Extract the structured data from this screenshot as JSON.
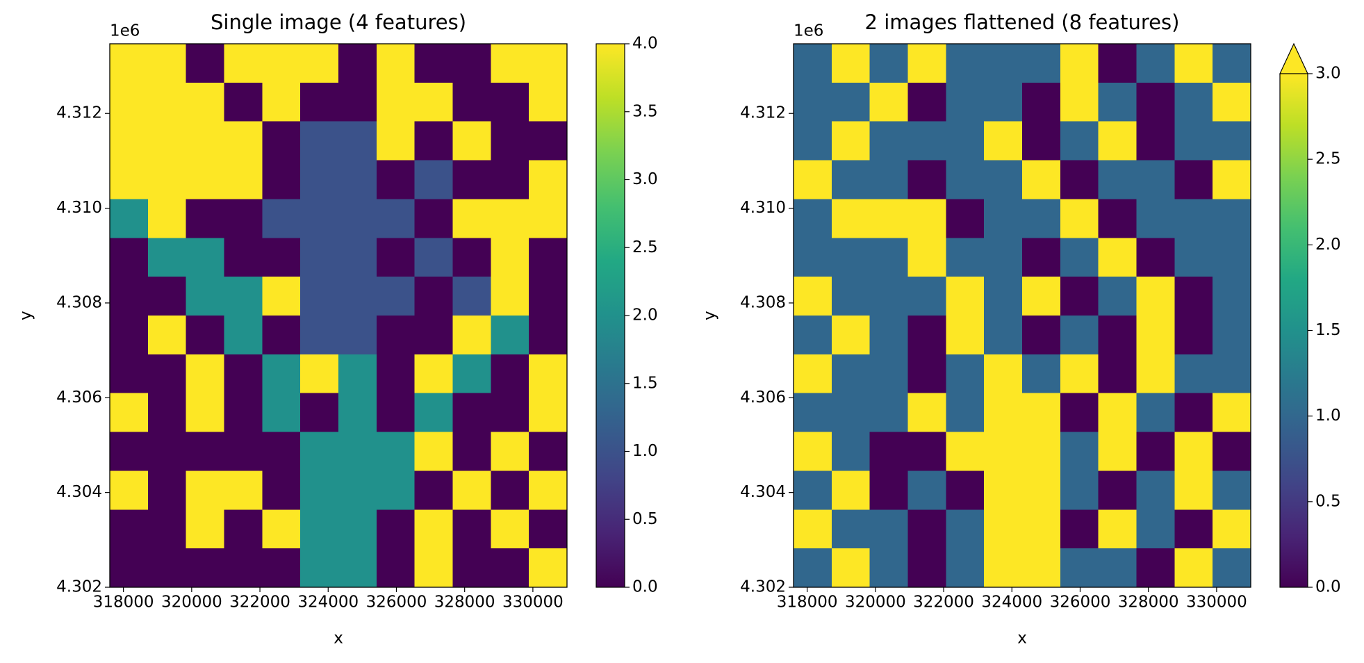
{
  "chart_data": [
    {
      "type": "heatmap",
      "title": "Single image (4 features)",
      "xlabel": "x",
      "ylabel": "y",
      "y_offset_label": "1e6",
      "colormap": "viridis",
      "xlim": [
        317600,
        331000
      ],
      "ylim": [
        4302000,
        4313470
      ],
      "xticks": [
        318000,
        320000,
        322000,
        324000,
        326000,
        328000,
        330000
      ],
      "yticks": [
        {
          "value": 4302000,
          "label": "4.302"
        },
        {
          "value": 4304000,
          "label": "4.304"
        },
        {
          "value": 4306000,
          "label": "4.306"
        },
        {
          "value": 4308000,
          "label": "4.308"
        },
        {
          "value": 4310000,
          "label": "4.310"
        },
        {
          "value": 4312000,
          "label": "4.312"
        }
      ],
      "clim": [
        0,
        4
      ],
      "cticks": [
        {
          "value": 0,
          "label": "0.0"
        },
        0.5,
        {
          "value": 1,
          "label": "1.0"
        },
        1.5,
        {
          "value": 2,
          "label": "2.0"
        },
        2.5,
        {
          "value": 3,
          "label": "3.0"
        },
        3.5,
        {
          "value": 4,
          "label": "4.0"
        }
      ],
      "extend": "neither",
      "grid": [
        [
          4,
          4,
          0,
          4,
          4,
          4,
          0,
          4,
          0,
          0,
          4,
          4
        ],
        [
          4,
          4,
          4,
          0,
          4,
          0,
          0,
          4,
          4,
          0,
          0,
          4
        ],
        [
          4,
          4,
          4,
          4,
          0,
          1,
          1,
          4,
          0,
          4,
          0,
          0
        ],
        [
          4,
          4,
          4,
          4,
          0,
          1,
          1,
          0,
          1,
          0,
          0,
          4
        ],
        [
          2,
          4,
          0,
          0,
          1,
          1,
          1,
          1,
          0,
          4,
          4,
          4
        ],
        [
          0,
          2,
          2,
          0,
          0,
          1,
          1,
          0,
          1,
          0,
          4,
          0
        ],
        [
          0,
          0,
          2,
          2,
          4,
          1,
          1,
          1,
          0,
          1,
          4,
          0
        ],
        [
          0,
          4,
          0,
          2,
          0,
          1,
          1,
          0,
          0,
          4,
          2,
          0
        ],
        [
          0,
          0,
          4,
          0,
          2,
          4,
          2,
          0,
          4,
          2,
          0,
          4
        ],
        [
          4,
          0,
          4,
          0,
          2,
          0,
          2,
          0,
          2,
          0,
          0,
          4
        ],
        [
          0,
          0,
          0,
          0,
          0,
          2,
          2,
          2,
          4,
          0,
          4,
          0
        ],
        [
          4,
          0,
          4,
          4,
          0,
          2,
          2,
          2,
          0,
          4,
          0,
          4
        ],
        [
          0,
          0,
          4,
          0,
          4,
          2,
          2,
          0,
          4,
          0,
          4,
          0
        ],
        [
          0,
          0,
          0,
          0,
          0,
          2,
          2,
          0,
          4,
          0,
          0,
          4
        ]
      ]
    },
    {
      "type": "heatmap",
      "title": "2 images flattened (8 features)",
      "xlabel": "x",
      "ylabel": "y",
      "y_offset_label": "1e6",
      "colormap": "viridis",
      "xlim": [
        317600,
        331000
      ],
      "ylim": [
        4302000,
        4313470
      ],
      "xticks": [
        318000,
        320000,
        322000,
        324000,
        326000,
        328000,
        330000
      ],
      "yticks": [
        {
          "value": 4302000,
          "label": "4.302"
        },
        {
          "value": 4304000,
          "label": "4.304"
        },
        {
          "value": 4306000,
          "label": "4.306"
        },
        {
          "value": 4308000,
          "label": "4.308"
        },
        {
          "value": 4310000,
          "label": "4.310"
        },
        {
          "value": 4312000,
          "label": "4.312"
        }
      ],
      "clim": [
        0,
        3
      ],
      "cticks": [
        {
          "value": 0,
          "label": "0.0"
        },
        0.5,
        {
          "value": 1,
          "label": "1.0"
        },
        1.5,
        {
          "value": 2,
          "label": "2.0"
        },
        2.5,
        {
          "value": 3,
          "label": "3.0"
        }
      ],
      "extend": "max",
      "grid": [
        [
          1,
          3,
          1,
          3,
          1,
          1,
          1,
          3,
          0,
          1,
          3,
          1
        ],
        [
          1,
          1,
          3,
          0,
          1,
          1,
          0,
          3,
          1,
          0,
          1,
          3
        ],
        [
          1,
          3,
          1,
          1,
          1,
          3,
          0,
          1,
          3,
          0,
          1,
          1
        ],
        [
          3,
          1,
          1,
          0,
          1,
          1,
          3,
          0,
          1,
          1,
          0,
          3
        ],
        [
          1,
          3,
          3,
          3,
          0,
          1,
          1,
          3,
          0,
          1,
          1,
          1
        ],
        [
          1,
          1,
          1,
          3,
          1,
          1,
          0,
          1,
          3,
          0,
          1,
          1
        ],
        [
          3,
          1,
          1,
          1,
          3,
          1,
          3,
          0,
          1,
          3,
          0,
          1
        ],
        [
          1,
          3,
          1,
          0,
          3,
          1,
          0,
          1,
          0,
          3,
          0,
          1
        ],
        [
          3,
          1,
          1,
          0,
          1,
          3,
          1,
          3,
          0,
          3,
          1,
          1
        ],
        [
          1,
          1,
          1,
          3,
          1,
          3,
          3,
          0,
          3,
          1,
          0,
          3
        ],
        [
          3,
          1,
          0,
          0,
          3,
          3,
          3,
          1,
          3,
          0,
          3,
          0
        ],
        [
          1,
          3,
          0,
          1,
          0,
          3,
          3,
          1,
          0,
          1,
          3,
          1
        ],
        [
          3,
          1,
          1,
          0,
          1,
          3,
          3,
          0,
          3,
          1,
          0,
          3
        ],
        [
          1,
          3,
          1,
          0,
          1,
          3,
          3,
          1,
          1,
          0,
          3,
          1
        ]
      ]
    }
  ]
}
